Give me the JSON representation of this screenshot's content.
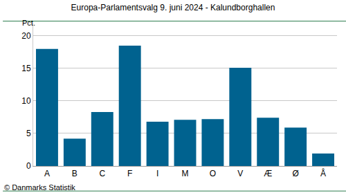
{
  "chart_data": {
    "type": "bar",
    "title": "Europa-Parlamentsvalg 9. juni 2024 - Kalundborghallen",
    "y_label": "Pct.",
    "source": "© Danmarks Statistik",
    "categories": [
      "A",
      "B",
      "C",
      "F",
      "I",
      "M",
      "O",
      "V",
      "Æ",
      "Ø",
      "Å"
    ],
    "values": [
      18.0,
      4.2,
      8.3,
      18.5,
      6.8,
      7.1,
      7.2,
      15.1,
      7.4,
      5.9,
      1.9
    ],
    "color": "#00628f",
    "ylim": [
      0,
      22
    ],
    "yticks": [
      0,
      5,
      10,
      15,
      20
    ],
    "grid": true
  }
}
